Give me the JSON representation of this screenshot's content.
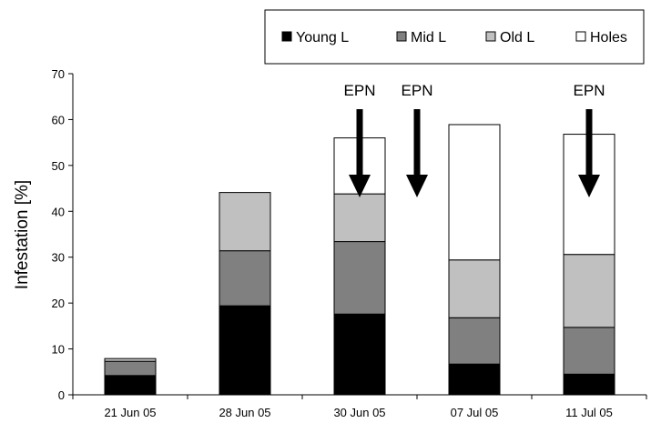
{
  "chart_data": {
    "type": "bar",
    "stacked": true,
    "categories": [
      "21 Jun 05",
      "28 Jun 05",
      "30 Jun 05",
      "07 Jul 05",
      "11 Jul 05"
    ],
    "series": [
      {
        "name": "Young L",
        "color": "#000000",
        "values": [
          4.2,
          19.4,
          17.6,
          6.7,
          4.5
        ]
      },
      {
        "name": "Mid L",
        "color": "#808080",
        "values": [
          3.1,
          12.0,
          15.8,
          10.1,
          10.2
        ]
      },
      {
        "name": "Old L",
        "color": "#c0c0c0",
        "values": [
          0.6,
          12.7,
          10.4,
          12.6,
          15.9
        ]
      },
      {
        "name": "Holes",
        "color": "#ffffff",
        "values": [
          0.0,
          0.0,
          12.2,
          29.5,
          26.2
        ]
      }
    ],
    "ylabel": "Infestation  [%]",
    "xlabel": "",
    "ylim": [
      0,
      70
    ],
    "yticks": [
      0,
      10,
      20,
      30,
      40,
      50,
      60,
      70
    ],
    "grid": false,
    "legend_position": "top-right",
    "annotations": [
      {
        "text": "EPN",
        "x": "30 Jun 05",
        "offset": "center"
      },
      {
        "text": "EPN",
        "x": "30 Jun 05",
        "offset": "between-next"
      },
      {
        "text": "EPN",
        "x": "11 Jul 05",
        "offset": "center"
      }
    ]
  }
}
